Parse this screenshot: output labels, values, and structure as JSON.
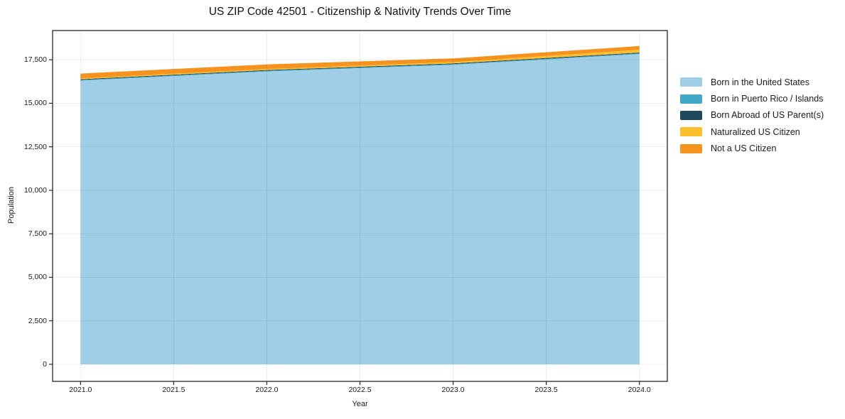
{
  "chart_data": {
    "type": "area",
    "stacked": true,
    "title": "US ZIP Code 42501 - Citizenship & Nativity Trends Over Time",
    "xlabel": "Year",
    "ylabel": "Population",
    "x": [
      2021,
      2022,
      2023,
      2024
    ],
    "series": [
      {
        "name": "Born in the United States",
        "color": "#A1CEE7",
        "values": [
          16300,
          16830,
          17210,
          17830
        ]
      },
      {
        "name": "Born in Puerto Rico / Islands",
        "color": "#41A8C8",
        "values": [
          40,
          40,
          40,
          40
        ]
      },
      {
        "name": "Born Abroad of US Parent(s)",
        "color": "#20485C",
        "values": [
          40,
          40,
          40,
          45
        ]
      },
      {
        "name": "Naturalized US Citizen",
        "color": "#FCC02E",
        "values": [
          45,
          60,
          75,
          160
        ]
      },
      {
        "name": "Not a US Citizen",
        "color": "#F6921E",
        "values": [
          280,
          265,
          215,
          215
        ]
      }
    ],
    "xlim": [
      2020.85,
      2024.15
    ],
    "ylim": [
      -980,
      19180
    ],
    "xticks": {
      "values": [
        2021.0,
        2021.5,
        2022.0,
        2022.5,
        2023.0,
        2023.5,
        2024.0
      ],
      "labels": [
        "2021.0",
        "2021.5",
        "2022.0",
        "2022.5",
        "2023.0",
        "2023.5",
        "2024.0"
      ]
    },
    "yticks": {
      "values": [
        0,
        2500,
        5000,
        7500,
        10000,
        12500,
        15000,
        17500
      ],
      "labels": [
        "0",
        "2,500",
        "5,000",
        "7,500",
        "10,000",
        "12,500",
        "15,000",
        "17,500"
      ]
    },
    "grid": true,
    "legend_position": "right",
    "frame_color": "#262626",
    "grid_color_rgba": "rgba(0,0,0,0.075)"
  }
}
